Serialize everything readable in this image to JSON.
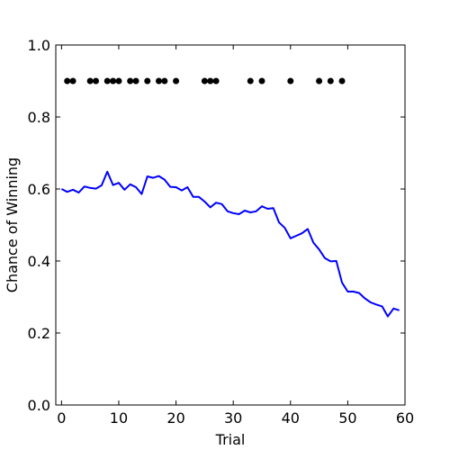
{
  "chart_data": {
    "type": "line",
    "title": "",
    "xlabel": "Trial",
    "ylabel": "Chance of Winning",
    "xlim": [
      -1,
      60
    ],
    "ylim": [
      0.0,
      1.0
    ],
    "grid": false,
    "x_ticks": [
      0,
      10,
      20,
      30,
      40,
      50,
      60
    ],
    "y_ticks": [
      0.0,
      0.2,
      0.4,
      0.6,
      0.8,
      1.0
    ],
    "x_tick_labels": [
      "0",
      "10",
      "20",
      "30",
      "40",
      "50",
      "60"
    ],
    "y_tick_labels": [
      "0.0",
      "0.2",
      "0.4",
      "0.6",
      "0.8",
      "1.0"
    ],
    "series": [
      {
        "type": "line",
        "color": "#0000ff",
        "x": [
          0,
          1,
          2,
          3,
          4,
          5,
          6,
          7,
          8,
          9,
          10,
          11,
          12,
          13,
          14,
          15,
          16,
          17,
          18,
          19,
          20,
          21,
          22,
          23,
          24,
          25,
          26,
          27,
          28,
          29,
          30,
          31,
          32,
          33,
          34,
          35,
          36,
          37,
          38,
          39,
          40,
          41,
          42,
          43,
          44,
          45,
          46,
          47,
          48,
          49,
          50,
          51,
          52,
          53,
          54,
          55,
          56,
          57,
          58,
          59
        ],
        "y": [
          0.6,
          0.592,
          0.598,
          0.59,
          0.607,
          0.603,
          0.601,
          0.61,
          0.648,
          0.611,
          0.617,
          0.598,
          0.613,
          0.605,
          0.586,
          0.635,
          0.631,
          0.636,
          0.626,
          0.606,
          0.605,
          0.596,
          0.605,
          0.578,
          0.578,
          0.565,
          0.549,
          0.562,
          0.558,
          0.538,
          0.533,
          0.53,
          0.54,
          0.535,
          0.538,
          0.552,
          0.545,
          0.547,
          0.507,
          0.492,
          0.463,
          0.47,
          0.477,
          0.489,
          0.451,
          0.432,
          0.408,
          0.399,
          0.4,
          0.34,
          0.315,
          0.315,
          0.311,
          0.296,
          0.285,
          0.279,
          0.274,
          0.246,
          0.268,
          0.263
        ]
      },
      {
        "type": "scatter",
        "color": "#000000",
        "x": [
          1,
          2,
          5,
          6,
          8,
          9,
          10,
          12,
          13,
          15,
          17,
          18,
          20,
          25,
          26,
          27,
          33,
          35,
          40,
          45,
          47,
          49
        ],
        "y": [
          0.9,
          0.9,
          0.9,
          0.9,
          0.9,
          0.9,
          0.9,
          0.9,
          0.9,
          0.9,
          0.9,
          0.9,
          0.9,
          0.9,
          0.9,
          0.9,
          0.9,
          0.9,
          0.9,
          0.9,
          0.9,
          0.9
        ]
      }
    ]
  }
}
